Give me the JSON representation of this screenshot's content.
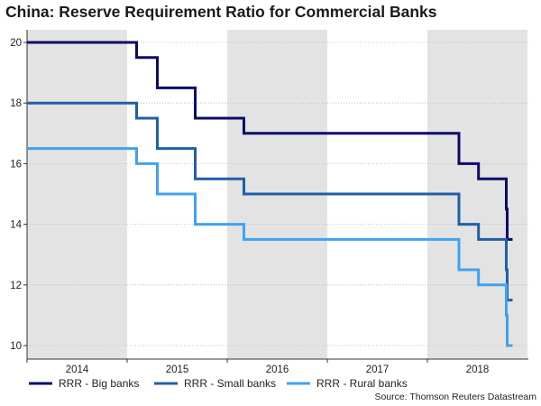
{
  "chart_data": {
    "type": "line",
    "title": "China: Reserve Requirement Ratio for Commercial Banks",
    "xlabel": "",
    "ylabel": "",
    "ylim": [
      10,
      20
    ],
    "y_ticks": [
      10,
      12,
      14,
      16,
      18,
      20
    ],
    "year_labels": [
      "2014",
      "2015",
      "2016",
      "2017",
      "2018"
    ],
    "x_start": "2014-01-01",
    "x_end": "2018-11-01",
    "shaded_years": [
      "2014",
      "2016",
      "2018"
    ],
    "grid": true,
    "legend_position": "bottom",
    "source": "Source: Thomson Reuters Datastream",
    "series": [
      {
        "name": "RRR - Big banks",
        "color": "#0b0b68",
        "start_value": 20,
        "changes": [
          {
            "date": "2015-02-05",
            "value": 19.5
          },
          {
            "date": "2015-04-20",
            "value": 18.5
          },
          {
            "date": "2015-09-06",
            "value": 17.5
          },
          {
            "date": "2016-03-01",
            "value": 17
          },
          {
            "date": "2018-04-25",
            "value": 16
          },
          {
            "date": "2018-07-05",
            "value": 15.5
          },
          {
            "date": "2018-10-15",
            "value": 14.5
          },
          {
            "date": "2019-01-15",
            "value": 13.5
          }
        ]
      },
      {
        "name": "RRR - Small banks",
        "color": "#1f5fa8",
        "start_value": 18,
        "changes": [
          {
            "date": "2015-02-05",
            "value": 17.5
          },
          {
            "date": "2015-04-20",
            "value": 16.5
          },
          {
            "date": "2015-09-06",
            "value": 15.5
          },
          {
            "date": "2016-03-01",
            "value": 15
          },
          {
            "date": "2018-04-25",
            "value": 14
          },
          {
            "date": "2018-07-05",
            "value": 13.5
          },
          {
            "date": "2018-10-15",
            "value": 12.5
          },
          {
            "date": "2019-01-15",
            "value": 11.5
          }
        ]
      },
      {
        "name": "RRR - Rural banks",
        "color": "#3fa2ef",
        "start_value": 16.5,
        "changes": [
          {
            "date": "2015-02-05",
            "value": 16
          },
          {
            "date": "2015-04-20",
            "value": 15
          },
          {
            "date": "2015-09-06",
            "value": 14
          },
          {
            "date": "2016-03-01",
            "value": 13.5
          },
          {
            "date": "2018-04-25",
            "value": 12.5
          },
          {
            "date": "2018-07-05",
            "value": 12
          },
          {
            "date": "2018-10-15",
            "value": 11
          },
          {
            "date": "2019-01-15",
            "value": 10
          }
        ]
      }
    ]
  }
}
